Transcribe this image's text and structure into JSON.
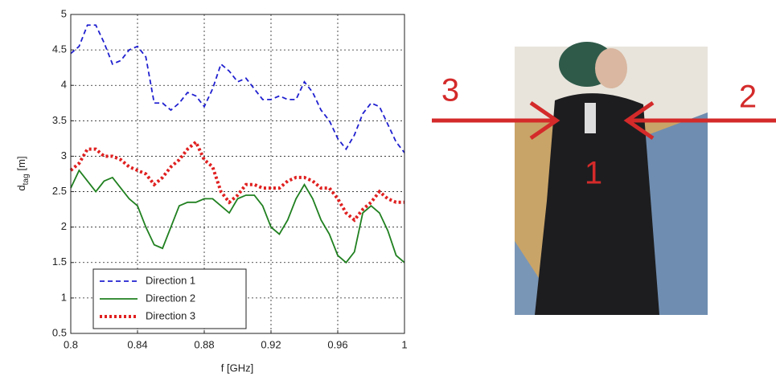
{
  "chart_data": {
    "type": "line",
    "xlabel": "f [GHz]",
    "ylabel": {
      "main": "d",
      "sub": "tag",
      "unit": "[m]"
    },
    "x": [
      0.8,
      0.805,
      0.81,
      0.815,
      0.82,
      0.825,
      0.83,
      0.835,
      0.84,
      0.845,
      0.85,
      0.855,
      0.86,
      0.865,
      0.87,
      0.875,
      0.88,
      0.885,
      0.89,
      0.895,
      0.9,
      0.905,
      0.91,
      0.915,
      0.92,
      0.925,
      0.93,
      0.935,
      0.94,
      0.945,
      0.95,
      0.955,
      0.96,
      0.965,
      0.97,
      0.975,
      0.98,
      0.985,
      0.99,
      0.995,
      1
    ],
    "series": [
      {
        "name": "Direction 1",
        "color": "#2020d0",
        "style": "dashed",
        "values": [
          4.45,
          4.55,
          4.85,
          4.85,
          4.6,
          4.3,
          4.35,
          4.5,
          4.55,
          4.4,
          3.75,
          3.75,
          3.65,
          3.75,
          3.9,
          3.85,
          3.7,
          3.95,
          4.3,
          4.2,
          4.05,
          4.1,
          3.95,
          3.8,
          3.8,
          3.85,
          3.8,
          3.8,
          4.05,
          3.9,
          3.65,
          3.5,
          3.25,
          3.1,
          3.3,
          3.6,
          3.75,
          3.7,
          3.45,
          3.2,
          3.05
        ]
      },
      {
        "name": "Direction 2",
        "color": "#208020",
        "style": "solid",
        "values": [
          2.55,
          2.8,
          2.65,
          2.5,
          2.65,
          2.7,
          2.55,
          2.4,
          2.3,
          2.0,
          1.75,
          1.7,
          2.0,
          2.3,
          2.35,
          2.35,
          2.4,
          2.4,
          2.3,
          2.2,
          2.4,
          2.45,
          2.45,
          2.3,
          2.0,
          1.9,
          2.1,
          2.4,
          2.6,
          2.4,
          2.1,
          1.9,
          1.6,
          1.5,
          1.65,
          2.2,
          2.3,
          2.2,
          1.95,
          1.6,
          1.5
        ]
      },
      {
        "name": "Direction 3",
        "color": "#e02020",
        "style": "dotted",
        "values": [
          2.8,
          2.9,
          3.1,
          3.1,
          3.0,
          3.0,
          2.95,
          2.85,
          2.8,
          2.75,
          2.6,
          2.7,
          2.85,
          2.95,
          3.1,
          3.2,
          2.95,
          2.85,
          2.5,
          2.35,
          2.45,
          2.6,
          2.6,
          2.55,
          2.55,
          2.55,
          2.65,
          2.7,
          2.7,
          2.65,
          2.55,
          2.55,
          2.4,
          2.2,
          2.1,
          2.25,
          2.35,
          2.5,
          2.4,
          2.35,
          2.35
        ]
      }
    ],
    "xlim": [
      0.8,
      1
    ],
    "xticks": [
      0.8,
      0.84,
      0.88,
      0.92,
      0.96,
      1
    ],
    "ylim": [
      0.5,
      5
    ],
    "yticks": [
      0.5,
      1,
      1.5,
      2,
      2.5,
      3,
      3.5,
      4,
      4.5,
      5
    ],
    "grid": true,
    "legend": "lower-left"
  },
  "photo": {
    "labels": [
      "3",
      "2",
      "1"
    ]
  }
}
